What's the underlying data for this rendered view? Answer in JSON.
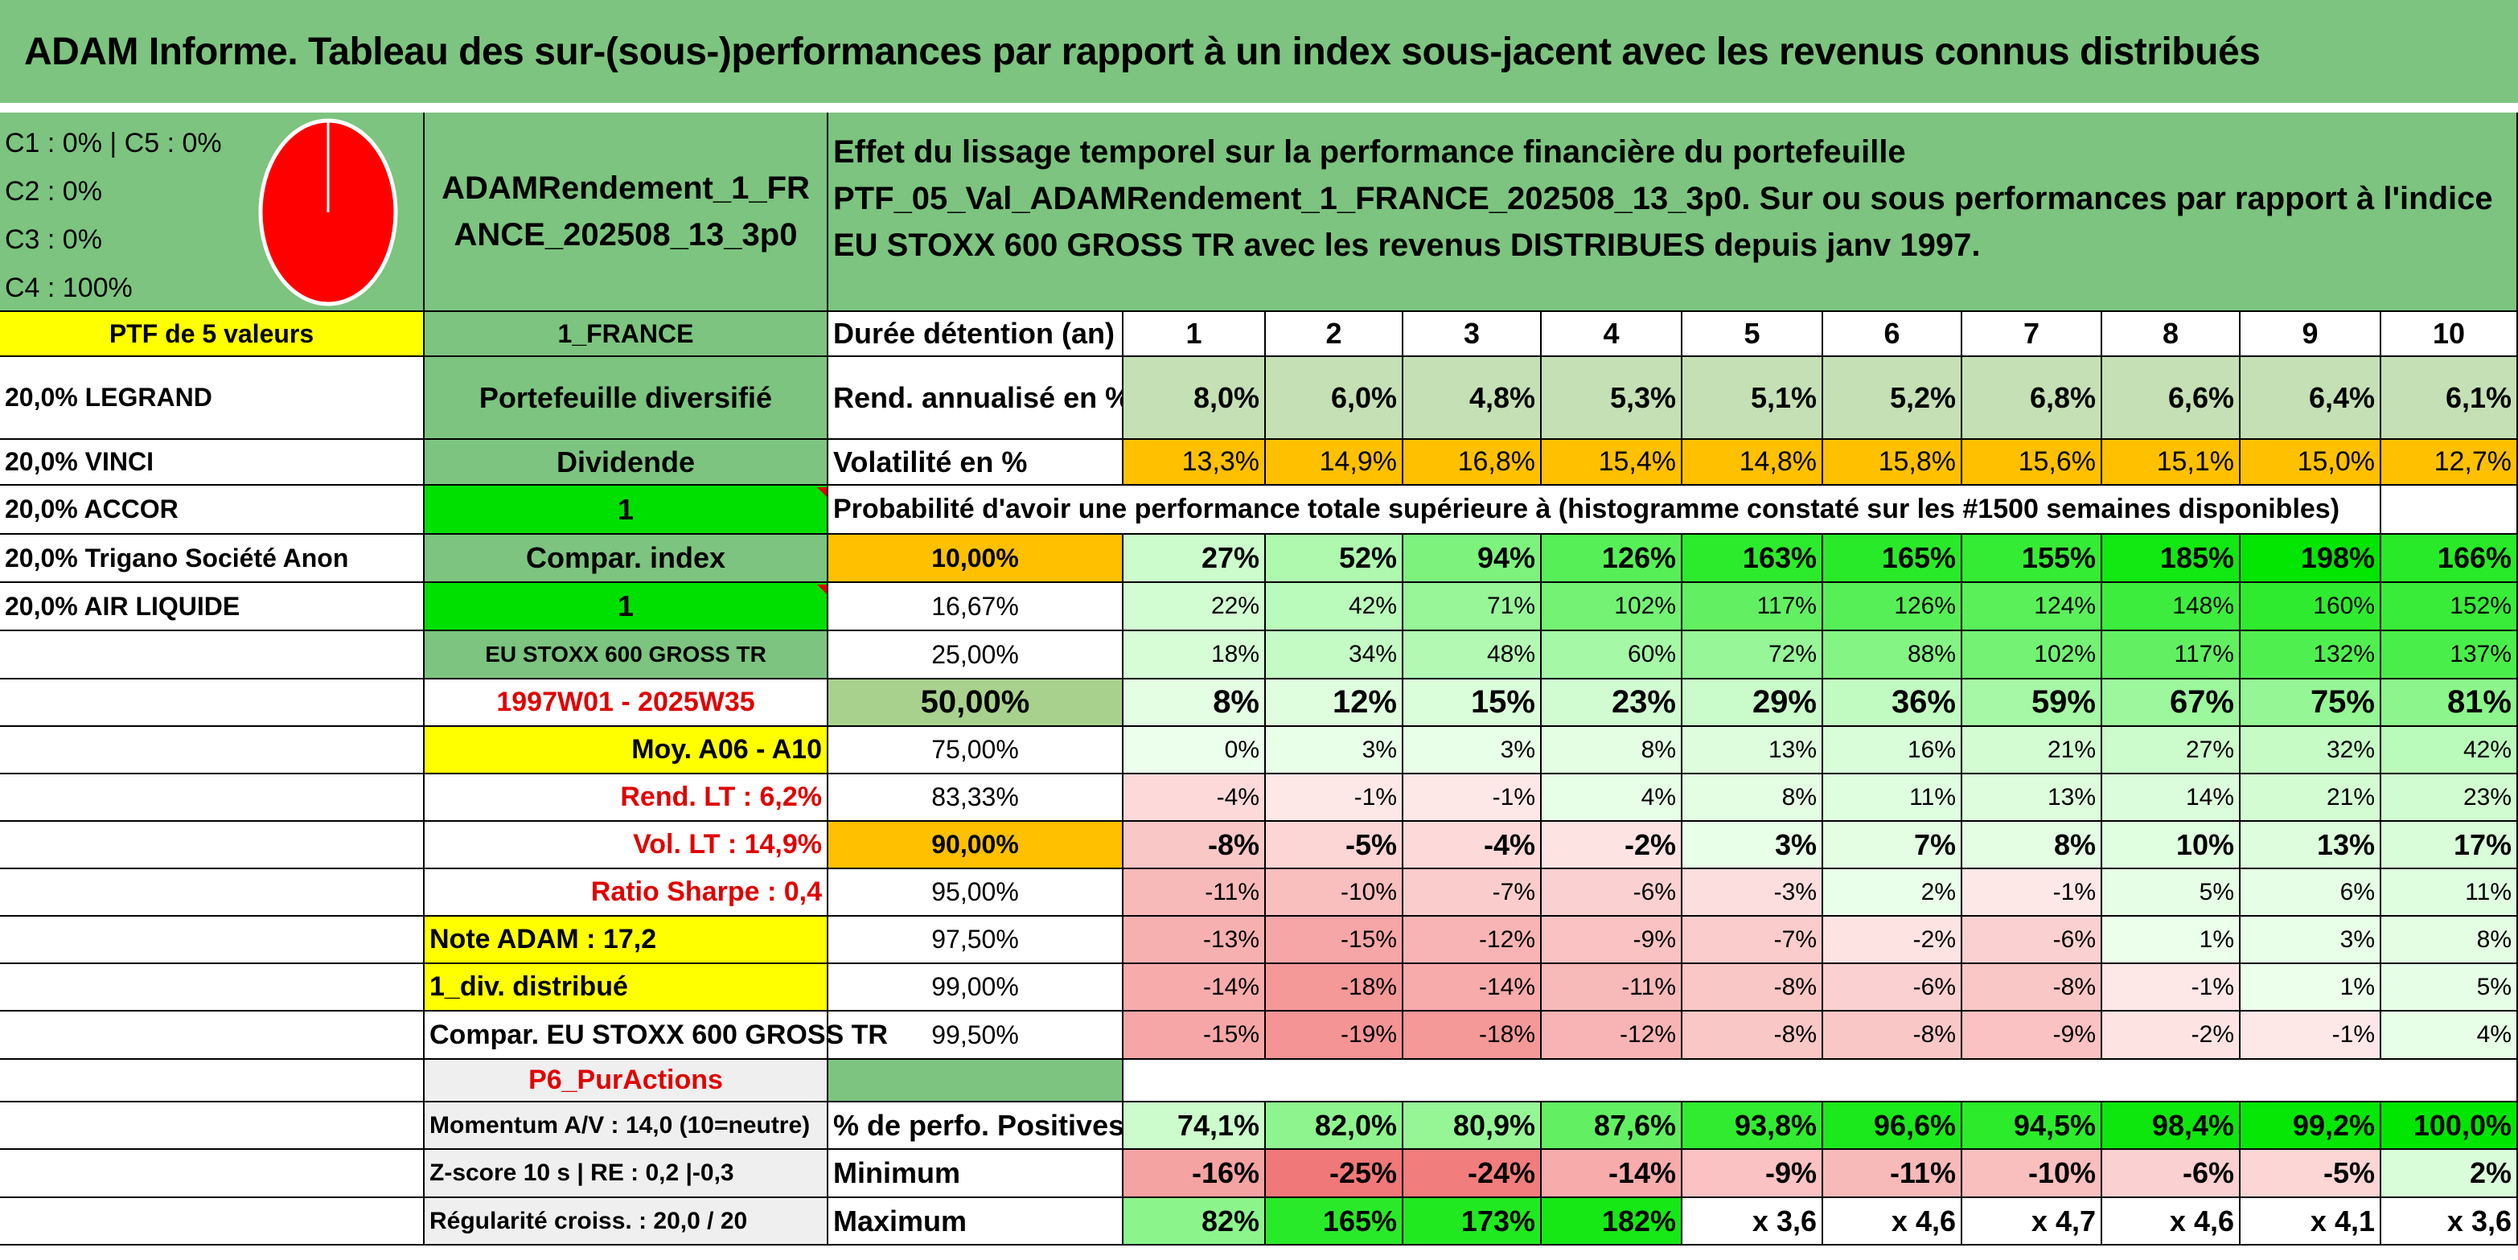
{
  "title": "ADAM Informe. Tableau des sur-(sous-)performances par rapport à un index sous-jacent avec les revenus connus distribués",
  "top_left": {
    "classes": [
      "C1 : 0% | C5 : 0%",
      "C2 : 0%",
      "C3 : 0%",
      "C4 : 100%"
    ],
    "pie_color": "#ff0000"
  },
  "portfolio_name": "ADAMRendement_1_FRANCE_202508_13_3p0",
  "description": "Effet du lissage temporel sur la performance financière du portefeuille PTF_05_Val_ADAMRendement_1_FRANCE_202508_13_3p0. Sur ou sous performances par rapport à l'indice EU STOXX 600 GROSS TR avec les revenus DISTRIBUES depuis janv 1997.",
  "col_a": [
    "PTF de 5 valeurs",
    "20,0% LEGRAND",
    "20,0% VINCI",
    "20,0% ACCOR",
    "20,0% Trigano Société Anon",
    "20,0% AIR LIQUIDE"
  ],
  "col_b": [
    "1_FRANCE",
    "Portefeuille diversifié",
    "Dividende",
    "1",
    "Compar. index",
    "1",
    "EU STOXX 600 GROSS TR",
    "1997W01 - 2025W35",
    "Moy. A06 - A10",
    "Rend. LT : 6,2%",
    "Vol. LT : 14,9%",
    "Ratio Sharpe : 0,4",
    "Note ADAM : 17,2",
    "1_div. distribué",
    "Compar. EU STOXX 600 GROSS TR",
    "P6_PurActions",
    "Momentum A/V : 14,0 (10=neutre)",
    "Z-score 10 s | RE : 0,2 |-0,3",
    "Régularité croiss. : 20,0 / 20"
  ],
  "header_row": {
    "label": "Durée détention (an)",
    "years": [
      "1",
      "2",
      "3",
      "4",
      "5",
      "6",
      "7",
      "8",
      "9",
      "10"
    ]
  },
  "rend_row": {
    "label": "Rend. annualisé en %",
    "values": [
      "8,0%",
      "6,0%",
      "4,8%",
      "5,3%",
      "5,1%",
      "5,2%",
      "6,8%",
      "6,6%",
      "6,4%",
      "6,1%"
    ]
  },
  "vol_row": {
    "label": "Volatilité en %",
    "values": [
      "13,3%",
      "14,9%",
      "16,8%",
      "15,4%",
      "14,8%",
      "15,8%",
      "15,6%",
      "15,1%",
      "15,0%",
      "12,7%"
    ]
  },
  "prob_title": "Probabilité d'avoir une performance totale supérieure à (histogramme constaté sur les #1500 semaines disponibles)",
  "prob_rows": [
    {
      "label": "10,00%",
      "values": [
        "27%",
        "52%",
        "94%",
        "126%",
        "163%",
        "165%",
        "155%",
        "185%",
        "198%",
        "166%"
      ]
    },
    {
      "label": "16,67%",
      "values": [
        "22%",
        "42%",
        "71%",
        "102%",
        "117%",
        "126%",
        "124%",
        "148%",
        "160%",
        "152%"
      ]
    },
    {
      "label": "25,00%",
      "values": [
        "18%",
        "34%",
        "48%",
        "60%",
        "72%",
        "88%",
        "102%",
        "117%",
        "132%",
        "137%"
      ]
    },
    {
      "label": "50,00%",
      "values": [
        "8%",
        "12%",
        "15%",
        "23%",
        "29%",
        "36%",
        "59%",
        "67%",
        "75%",
        "81%"
      ]
    },
    {
      "label": "75,00%",
      "values": [
        "0%",
        "3%",
        "3%",
        "8%",
        "13%",
        "16%",
        "21%",
        "27%",
        "32%",
        "42%"
      ]
    },
    {
      "label": "83,33%",
      "values": [
        "-4%",
        "-1%",
        "-1%",
        "4%",
        "8%",
        "11%",
        "13%",
        "14%",
        "21%",
        "23%"
      ]
    },
    {
      "label": "90,00%",
      "values": [
        "-8%",
        "-5%",
        "-4%",
        "-2%",
        "3%",
        "7%",
        "8%",
        "10%",
        "13%",
        "17%"
      ]
    },
    {
      "label": "95,00%",
      "values": [
        "-11%",
        "-10%",
        "-7%",
        "-6%",
        "-3%",
        "2%",
        "-1%",
        "5%",
        "6%",
        "11%"
      ]
    },
    {
      "label": "97,50%",
      "values": [
        "-13%",
        "-15%",
        "-12%",
        "-9%",
        "-7%",
        "-2%",
        "-6%",
        "1%",
        "3%",
        "8%"
      ]
    },
    {
      "label": "99,00%",
      "values": [
        "-14%",
        "-18%",
        "-14%",
        "-11%",
        "-8%",
        "-6%",
        "-8%",
        "-1%",
        "1%",
        "5%"
      ]
    },
    {
      "label": "99,50%",
      "values": [
        "-15%",
        "-19%",
        "-18%",
        "-12%",
        "-8%",
        "-8%",
        "-9%",
        "-2%",
        "-1%",
        "4%"
      ]
    }
  ],
  "pos_row": {
    "label": "% de perfo. Positives",
    "values": [
      "74,1%",
      "82,0%",
      "80,9%",
      "87,6%",
      "93,8%",
      "96,6%",
      "94,5%",
      "98,4%",
      "99,2%",
      "100,0%"
    ]
  },
  "min_row": {
    "label": "Minimum",
    "values": [
      "-16%",
      "-25%",
      "-24%",
      "-14%",
      "-9%",
      "-11%",
      "-10%",
      "-6%",
      "-5%",
      "2%"
    ]
  },
  "max_row": {
    "label": "Maximum",
    "values": [
      "82%",
      "165%",
      "173%",
      "182%",
      "x 3,6",
      "x 4,6",
      "x 4,7",
      "x 4,6",
      "x 4,1",
      "x 3,6"
    ]
  }
}
